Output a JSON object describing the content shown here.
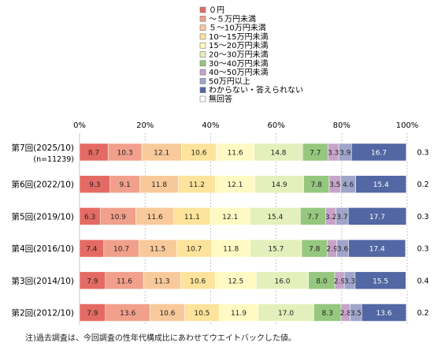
{
  "chart_data": {
    "type": "bar",
    "orientation": "horizontal-stacked-100",
    "categories": [
      "第7回(2025/10)",
      "第6回(2022/10)",
      "第5回(2019/10)",
      "第4回(2016/10)",
      "第3回(2014/10)",
      "第2回(2012/10)"
    ],
    "category_subtitles": [
      "(n=11239)",
      "",
      "",
      "",
      "",
      ""
    ],
    "series": [
      {
        "name": "０円",
        "color": "#e46b63",
        "values": [
          8.7,
          9.3,
          6.3,
          7.4,
          7.9,
          7.9
        ]
      },
      {
        "name": "～５万円未満",
        "color": "#f1a08c",
        "values": [
          10.3,
          9.1,
          10.9,
          10.7,
          11.6,
          13.6
        ]
      },
      {
        "name": "５～10万円未満",
        "color": "#f8c99a",
        "values": [
          12.1,
          11.8,
          11.6,
          11.5,
          11.3,
          10.6
        ]
      },
      {
        "name": "10～15万円未満",
        "color": "#fde39b",
        "values": [
          10.6,
          11.2,
          11.1,
          10.7,
          10.6,
          10.5
        ]
      },
      {
        "name": "15～20万円未満",
        "color": "#fffac4",
        "values": [
          11.6,
          12.1,
          12.1,
          11.8,
          12.5,
          11.9
        ]
      },
      {
        "name": "20～30万円未満",
        "color": "#e4f0bb",
        "values": [
          14.8,
          14.9,
          15.4,
          15.7,
          16.0,
          17.0
        ]
      },
      {
        "name": "30～40万円未満",
        "color": "#96c77e",
        "values": [
          7.7,
          7.8,
          7.7,
          7.8,
          8.0,
          8.3
        ]
      },
      {
        "name": "40～50万円未満",
        "color": "#c7a3c9",
        "values": [
          3.3,
          3.5,
          3.2,
          2.9,
          2.9,
          2.8
        ]
      },
      {
        "name": "50万円以上",
        "color": "#9fa5c9",
        "values": [
          3.9,
          4.6,
          3.7,
          3.6,
          3.3,
          3.5
        ]
      },
      {
        "name": "わからない・答えられない",
        "color": "#5267a3",
        "values": [
          16.7,
          15.4,
          17.7,
          17.4,
          15.5,
          13.6
        ]
      },
      {
        "name": "無回答",
        "color": "#ffffff",
        "values": [
          0.3,
          0.2,
          0.3,
          0.3,
          0.4,
          0.2
        ]
      }
    ],
    "xticks": [
      "0%",
      "20%",
      "40%",
      "60%",
      "80%",
      "100%"
    ],
    "xlim": [
      0,
      100
    ],
    "legend_position": "top",
    "note": "注)過去調査は、今回調査の性年代構成比にあわせてウエイトバックした値。"
  }
}
